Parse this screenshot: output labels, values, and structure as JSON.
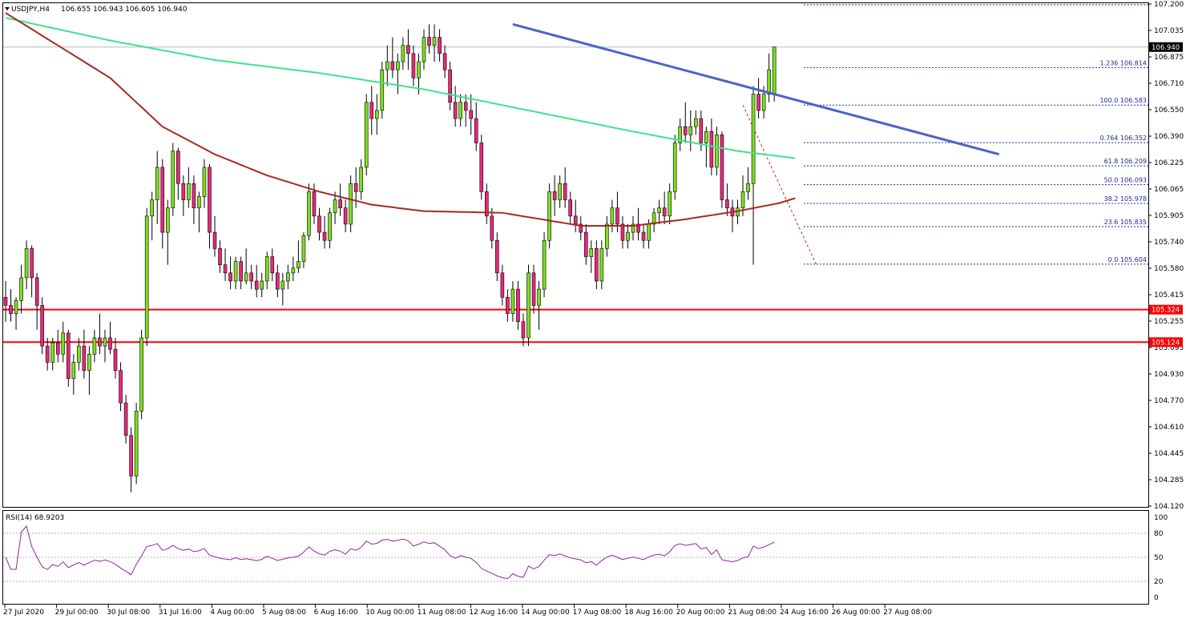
{
  "header": {
    "symbol": "USDJPY,H4",
    "ohlc": "106.655 106.943 106.605 106.940"
  },
  "rsi_header": "RSI(14) 68.9203",
  "current_price_tag": "106.940",
  "levels": [
    {
      "label": "105.324",
      "value": 105.324,
      "color": "#ff0000"
    },
    {
      "label": "105.124",
      "value": 105.124,
      "color": "#ff0000"
    }
  ],
  "fib_levels": [
    {
      "label": "1.236 106.814",
      "value": 106.814
    },
    {
      "label": "100.0 106.583",
      "value": 106.583
    },
    {
      "label": "0.764 106.352",
      "value": 106.352
    },
    {
      "label": "61.8 106.209",
      "value": 106.209
    },
    {
      "label": "50.0 106.093",
      "value": 106.093
    },
    {
      "label": "38.2 105.978",
      "value": 105.978
    },
    {
      "label": "23.6 105.835",
      "value": 105.835
    },
    {
      "label": "0.0 105.604",
      "value": 105.604
    }
  ],
  "price_ticks": [
    "107.200",
    "107.035",
    "106.875",
    "106.710",
    "106.550",
    "106.390",
    "106.225",
    "106.065",
    "105.905",
    "105.740",
    "105.580",
    "105.415",
    "105.255",
    "105.095",
    "104.930",
    "104.770",
    "104.610",
    "104.445",
    "104.285",
    "104.120"
  ],
  "rsi_ticks": [
    "100",
    "80",
    "50",
    "20",
    "0"
  ],
  "date_labels": [
    "27 Jul 2020",
    "29 Jul 00:00",
    "30 Jul 08:00",
    "31 Jul 16:00",
    "4 Aug 00:00",
    "5 Aug 08:00",
    "6 Aug 16:00",
    "10 Aug 00:00",
    "11 Aug 08:00",
    "12 Aug 16:00",
    "14 Aug 00:00",
    "17 Aug 08:00",
    "18 Aug 16:00",
    "20 Aug 00:00",
    "21 Aug 08:00",
    "24 Aug 16:00",
    "26 Aug 00:00",
    "27 Aug 08:00"
  ],
  "colors": {
    "bull": "#7ae01e",
    "bear": "#e8297a",
    "ma_fast": "#a62a22",
    "ma_slow": "#3ee387",
    "trendline": "#4a63c8",
    "rsi_line": "#8a2a9a",
    "fib": "#1a2a9c",
    "level": "#ff0000"
  },
  "chart_data": [
    {
      "type": "candlestick",
      "symbol": "USDJPY",
      "timeframe": "H4",
      "ylim": [
        104.12,
        107.2
      ],
      "x_start_label": "27 Jul 2020",
      "x_end_label": "27 Aug 08:00",
      "candles": [
        [
          105.4,
          105.5,
          105.25,
          105.35
        ],
        [
          105.35,
          105.45,
          105.25,
          105.3
        ],
        [
          105.3,
          105.4,
          105.2,
          105.38
        ],
        [
          105.38,
          105.6,
          105.3,
          105.52
        ],
        [
          105.52,
          105.75,
          105.45,
          105.7
        ],
        [
          105.7,
          105.72,
          105.4,
          105.52
        ],
        [
          105.52,
          105.55,
          105.2,
          105.35
        ],
        [
          105.35,
          105.4,
          105.05,
          105.1
        ],
        [
          105.1,
          105.15,
          104.95,
          105.0
        ],
        [
          105.0,
          105.15,
          104.95,
          105.12
        ],
        [
          105.12,
          105.2,
          105.0,
          105.05
        ],
        [
          105.05,
          105.25,
          105.0,
          105.18
        ],
        [
          105.18,
          105.2,
          104.85,
          104.9
        ],
        [
          104.9,
          105.05,
          104.8,
          105.0
        ],
        [
          105.0,
          105.15,
          104.95,
          105.1
        ],
        [
          105.1,
          105.2,
          104.9,
          104.95
        ],
        [
          104.95,
          105.1,
          104.8,
          105.05
        ],
        [
          105.05,
          105.2,
          105.0,
          105.15
        ],
        [
          105.15,
          105.3,
          105.05,
          105.1
        ],
        [
          105.1,
          105.2,
          105.0,
          105.15
        ],
        [
          105.15,
          105.25,
          105.05,
          105.08
        ],
        [
          105.08,
          105.15,
          104.9,
          104.95
        ],
        [
          104.95,
          105.0,
          104.7,
          104.75
        ],
        [
          104.75,
          104.8,
          104.5,
          104.55
        ],
        [
          104.55,
          104.6,
          104.2,
          104.3
        ],
        [
          104.3,
          104.75,
          104.25,
          104.7
        ],
        [
          104.7,
          105.2,
          104.65,
          105.15
        ],
        [
          105.15,
          105.95,
          105.1,
          105.9
        ],
        [
          105.9,
          106.05,
          105.75,
          106.0
        ],
        [
          106.0,
          106.3,
          105.85,
          106.2
        ],
        [
          106.2,
          106.25,
          105.7,
          105.8
        ],
        [
          105.8,
          106.0,
          105.6,
          105.95
        ],
        [
          105.95,
          106.35,
          105.9,
          106.3
        ],
        [
          106.3,
          106.32,
          106.0,
          106.1
        ],
        [
          106.1,
          106.15,
          105.9,
          106.0
        ],
        [
          106.0,
          106.2,
          105.95,
          106.1
        ],
        [
          106.1,
          106.15,
          105.85,
          105.95
        ],
        [
          105.95,
          106.05,
          105.8,
          106.02
        ],
        [
          106.02,
          106.25,
          105.95,
          106.2
        ],
        [
          106.2,
          106.22,
          105.7,
          105.8
        ],
        [
          105.8,
          105.9,
          105.65,
          105.7
        ],
        [
          105.7,
          105.75,
          105.55,
          105.6
        ],
        [
          105.6,
          105.7,
          105.5,
          105.55
        ],
        [
          105.55,
          105.65,
          105.45,
          105.5
        ],
        [
          105.5,
          105.65,
          105.45,
          105.62
        ],
        [
          105.62,
          105.65,
          105.45,
          105.5
        ],
        [
          105.5,
          105.7,
          105.48,
          105.55
        ],
        [
          105.55,
          105.6,
          105.45,
          105.5
        ],
        [
          105.5,
          105.6,
          105.4,
          105.45
        ],
        [
          105.45,
          105.55,
          105.4,
          105.5
        ],
        [
          105.5,
          105.68,
          105.45,
          105.65
        ],
        [
          105.65,
          105.7,
          105.5,
          105.55
        ],
        [
          105.55,
          105.6,
          105.4,
          105.45
        ],
        [
          105.45,
          105.55,
          105.35,
          105.5
        ],
        [
          105.5,
          105.6,
          105.45,
          105.55
        ],
        [
          105.55,
          105.65,
          105.5,
          105.58
        ],
        [
          105.58,
          105.75,
          105.55,
          105.62
        ],
        [
          105.62,
          105.8,
          105.58,
          105.78
        ],
        [
          105.78,
          106.1,
          105.75,
          106.05
        ],
        [
          106.05,
          106.1,
          105.85,
          105.9
        ],
        [
          105.9,
          105.95,
          105.75,
          105.8
        ],
        [
          105.8,
          105.9,
          105.7,
          105.75
        ],
        [
          105.75,
          105.95,
          105.7,
          105.92
        ],
        [
          105.92,
          106.05,
          105.85,
          106.0
        ],
        [
          106.0,
          106.1,
          105.9,
          105.95
        ],
        [
          105.95,
          106.0,
          105.8,
          105.85
        ],
        [
          105.85,
          106.15,
          105.8,
          106.1
        ],
        [
          106.1,
          106.2,
          105.95,
          106.05
        ],
        [
          106.05,
          106.25,
          106.0,
          106.2
        ],
        [
          106.2,
          106.65,
          106.15,
          106.6
        ],
        [
          106.6,
          106.7,
          106.4,
          106.5
        ],
        [
          106.5,
          106.65,
          106.4,
          106.55
        ],
        [
          106.55,
          106.85,
          106.5,
          106.8
        ],
        [
          106.8,
          106.95,
          106.7,
          106.85
        ],
        [
          106.85,
          107.0,
          106.75,
          106.8
        ],
        [
          106.8,
          106.9,
          106.65,
          106.85
        ],
        [
          106.85,
          107.0,
          106.8,
          106.95
        ],
        [
          106.95,
          107.05,
          106.8,
          106.9
        ],
        [
          106.9,
          106.95,
          106.7,
          106.75
        ],
        [
          106.75,
          106.9,
          106.65,
          106.85
        ],
        [
          106.85,
          107.05,
          106.8,
          107.0
        ],
        [
          107.0,
          107.08,
          106.9,
          106.95
        ],
        [
          106.95,
          107.08,
          106.85,
          107.0
        ],
        [
          107.0,
          107.05,
          106.85,
          106.9
        ],
        [
          106.9,
          106.95,
          106.75,
          106.8
        ],
        [
          106.8,
          106.85,
          106.55,
          106.6
        ],
        [
          106.6,
          106.7,
          106.45,
          106.5
        ],
        [
          106.5,
          106.65,
          106.45,
          106.6
        ],
        [
          106.6,
          106.65,
          106.45,
          106.55
        ],
        [
          106.55,
          106.65,
          106.4,
          106.5
        ],
        [
          106.5,
          106.6,
          106.3,
          106.35
        ],
        [
          106.35,
          106.4,
          106.0,
          106.05
        ],
        [
          106.05,
          106.1,
          105.85,
          105.9
        ],
        [
          105.9,
          105.95,
          105.7,
          105.75
        ],
        [
          105.75,
          105.8,
          105.5,
          105.55
        ],
        [
          105.55,
          105.6,
          105.35,
          105.4
        ],
        [
          105.4,
          105.45,
          105.25,
          105.3
        ],
        [
          105.3,
          105.5,
          105.25,
          105.45
        ],
        [
          105.45,
          105.5,
          105.2,
          105.25
        ],
        [
          105.25,
          105.3,
          105.1,
          105.15
        ],
        [
          105.15,
          105.6,
          105.1,
          105.55
        ],
        [
          105.55,
          105.6,
          105.3,
          105.35
        ],
        [
          105.35,
          105.5,
          105.2,
          105.45
        ],
        [
          105.45,
          105.8,
          105.4,
          105.75
        ],
        [
          105.75,
          106.1,
          105.7,
          106.05
        ],
        [
          106.05,
          106.15,
          105.9,
          106.0
        ],
        [
          106.0,
          106.15,
          105.95,
          106.1
        ],
        [
          106.1,
          106.2,
          105.95,
          106.0
        ],
        [
          106.0,
          106.05,
          105.85,
          105.9
        ],
        [
          105.9,
          106.0,
          105.8,
          105.85
        ],
        [
          105.85,
          105.9,
          105.75,
          105.8
        ],
        [
          105.8,
          105.85,
          105.6,
          105.65
        ],
        [
          105.65,
          105.75,
          105.55,
          105.7
        ],
        [
          105.7,
          105.75,
          105.45,
          105.5
        ],
        [
          105.5,
          105.75,
          105.45,
          105.7
        ],
        [
          105.7,
          105.9,
          105.65,
          105.85
        ],
        [
          105.85,
          106.0,
          105.8,
          105.95
        ],
        [
          105.95,
          106.05,
          105.8,
          105.85
        ],
        [
          105.85,
          105.9,
          105.7,
          105.75
        ],
        [
          105.75,
          105.85,
          105.7,
          105.8
        ],
        [
          105.8,
          105.9,
          105.75,
          105.85
        ],
        [
          105.85,
          105.95,
          105.75,
          105.8
        ],
        [
          105.8,
          105.85,
          105.7,
          105.75
        ],
        [
          105.75,
          105.88,
          105.7,
          105.85
        ],
        [
          105.85,
          105.95,
          105.8,
          105.92
        ],
        [
          105.92,
          106.0,
          105.85,
          105.95
        ],
        [
          105.95,
          106.05,
          105.85,
          105.9
        ],
        [
          105.9,
          106.1,
          105.85,
          106.05
        ],
        [
          106.05,
          106.4,
          106.0,
          106.35
        ],
        [
          106.35,
          106.5,
          106.3,
          106.45
        ],
        [
          106.45,
          106.6,
          106.35,
          106.4
        ],
        [
          106.4,
          106.55,
          106.3,
          106.45
        ],
        [
          106.45,
          106.55,
          106.4,
          106.5
        ],
        [
          106.5,
          106.55,
          106.3,
          106.35
        ],
        [
          106.35,
          106.45,
          106.2,
          106.42
        ],
        [
          106.42,
          106.5,
          106.15,
          106.2
        ],
        [
          106.2,
          106.45,
          106.15,
          106.4
        ],
        [
          106.4,
          106.42,
          105.95,
          106.0
        ],
        [
          106.0,
          106.1,
          105.9,
          105.95
        ],
        [
          105.95,
          106.0,
          105.8,
          105.9
        ],
        [
          105.9,
          106.0,
          105.85,
          105.95
        ],
        [
          105.95,
          106.15,
          105.9,
          106.05
        ],
        [
          106.05,
          106.2,
          106.0,
          106.1
        ],
        [
          106.1,
          106.7,
          105.6,
          106.65
        ],
        [
          106.65,
          106.75,
          106.5,
          106.55
        ],
        [
          106.55,
          106.7,
          106.5,
          106.65
        ],
        [
          106.65,
          106.9,
          106.6,
          106.8
        ],
        [
          106.655,
          106.943,
          106.605,
          106.94
        ]
      ]
    },
    {
      "type": "line",
      "title": "RSI(14) 68.9203",
      "ylim": [
        0,
        100
      ],
      "ticks": [
        0,
        20,
        50,
        80,
        100
      ],
      "levels": [
        20,
        50,
        80
      ],
      "last_value": 68.9203
    }
  ]
}
